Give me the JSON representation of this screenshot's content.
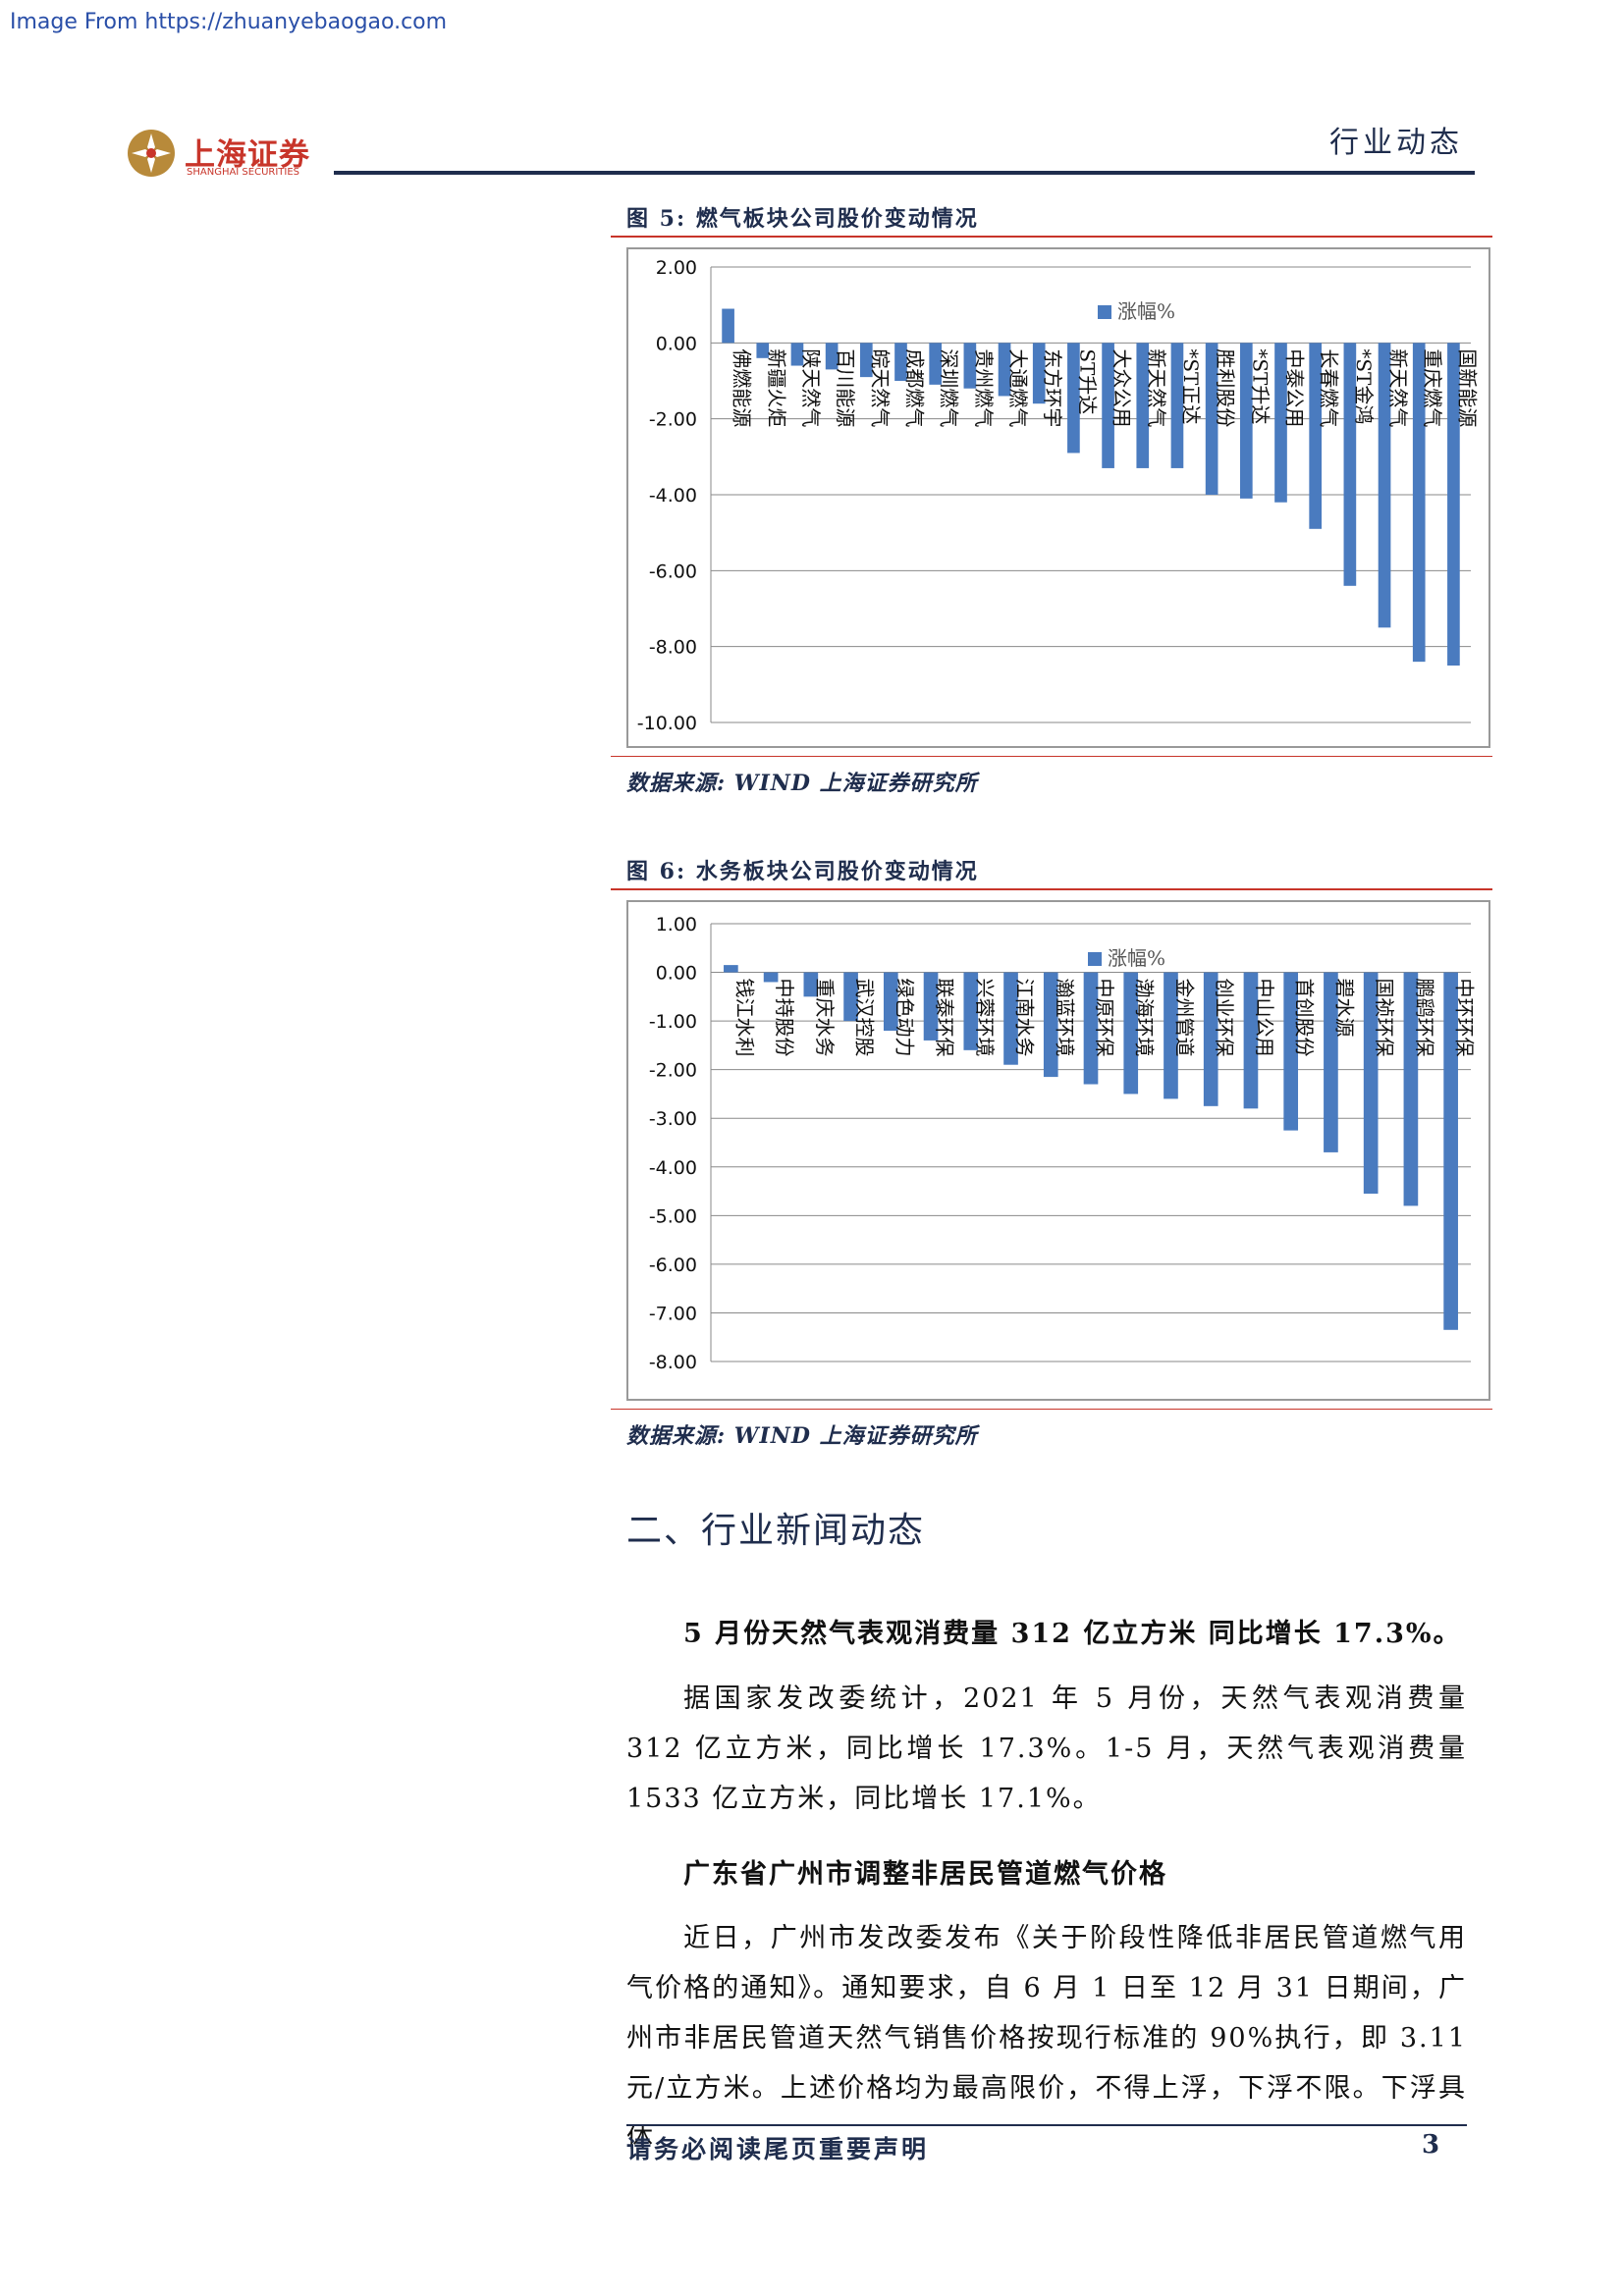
{
  "source_url": "Image From https://zhuanyebaogao.com",
  "header": {
    "logo_cn": "上海证券",
    "logo_en": "SHANGHAI SECURITIES",
    "category": "行业动态"
  },
  "figures": [
    {
      "title": "图 5: 燃气板块公司股价变动情况",
      "source": "数据来源: WIND 上海证券研究所"
    },
    {
      "title": "图 6: 水务板块公司股价变动情况",
      "source": "数据来源: WIND 上海证券研究所"
    }
  ],
  "colors": {
    "bar": "#4a7bbf",
    "accent_red": "#c8352a",
    "navy": "#1f2d4d"
  },
  "chart_data": [
    {
      "type": "bar",
      "categories": [
        "佛燃能源",
        "新疆火炬",
        "陕天然气",
        "百川能源",
        "皖天然气",
        "成都燃气",
        "深圳燃气",
        "贵州燃气",
        "大通燃气",
        "东方环宇",
        "ST升达",
        "大众公用",
        "新天然气",
        "*ST正达",
        "胜利股份",
        "*ST升达",
        "中泰公用",
        "长春燃气",
        "*ST金鸿",
        "新天然气",
        "重庆燃气",
        "国新能源"
      ],
      "series": [
        {
          "name": "涨幅%",
          "values": [
            0.9,
            -0.4,
            -0.6,
            -0.7,
            -0.9,
            -1.0,
            -1.1,
            -1.2,
            -1.4,
            -1.6,
            -2.9,
            -3.3,
            -3.3,
            -3.3,
            -4.0,
            -4.1,
            -4.2,
            -4.9,
            -6.4,
            -7.5,
            -8.4,
            -8.5
          ]
        }
      ],
      "ylim": [
        -10,
        2
      ],
      "yticks": [
        "2.00",
        "0.00",
        "-2.00",
        "-4.00",
        "-6.00",
        "-8.00",
        "-10.00"
      ],
      "grid": true,
      "legend": "top-right"
    },
    {
      "type": "bar",
      "categories": [
        "钱江水利",
        "中持股份",
        "重庆水务",
        "武汉控股",
        "绿色动力",
        "联泰环保",
        "兴蓉环境",
        "江南水务",
        "瀚蓝环境",
        "中原环保",
        "渤海环境",
        "金州管道",
        "创业环保",
        "中山公用",
        "首创股份",
        "碧水源",
        "国祯环保",
        "鹏鹞环保",
        "中环环保"
      ],
      "series": [
        {
          "name": "涨幅%",
          "values": [
            0.15,
            -0.2,
            -0.5,
            -1.0,
            -1.2,
            -1.4,
            -1.6,
            -1.9,
            -2.15,
            -2.3,
            -2.5,
            -2.6,
            -2.75,
            -2.8,
            -3.25,
            -3.7,
            -4.55,
            -4.8,
            -7.35
          ]
        }
      ],
      "ylim": [
        -8,
        1
      ],
      "yticks": [
        "1.00",
        "0.00",
        "-1.00",
        "-2.00",
        "-3.00",
        "-4.00",
        "-5.00",
        "-6.00",
        "-7.00",
        "-8.00"
      ],
      "grid": true,
      "legend": "top-center"
    }
  ],
  "section": {
    "heading": "二、行业新闻动态"
  },
  "news": [
    {
      "title": "5 月份天然气表观消费量 312 亿立方米 同比增长 17.3%。",
      "body": "据国家发改委统计，2021 年 5 月份，天然气表观消费量 312 亿立方米，同比增长 17.3%。1-5 月，天然气表观消费量 1533 亿立方米，同比增长 17.1%。"
    },
    {
      "title": "广东省广州市调整非居民管道燃气价格",
      "body": "近日，广州市发改委发布《关于阶段性降低非居民管道燃气用气价格的通知》。通知要求，自 6 月 1 日至 12 月 31 日期间，广州市非居民管道天然气销售价格按现行标准的 90%执行，即 3.11 元/立方米。上述价格均为最高限价，不得上浮，下浮不限。下浮具体"
    }
  ],
  "footer": {
    "notice": "请务必阅读尾页重要声明",
    "page": "3"
  }
}
